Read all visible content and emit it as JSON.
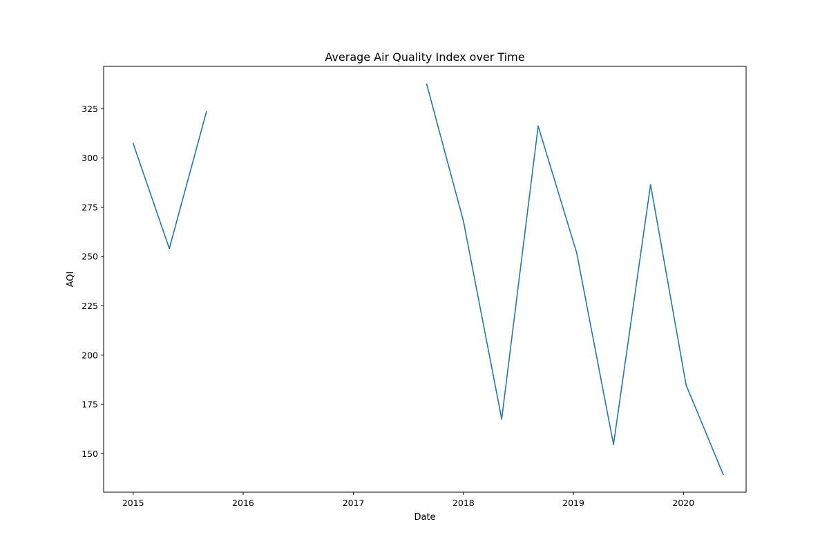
{
  "chart_data": {
    "type": "line",
    "title": "Average Air Quality Index over Time",
    "xlabel": "Date",
    "ylabel": "AQI",
    "x_ticks": [
      "2015",
      "2016",
      "2017",
      "2018",
      "2019",
      "2020"
    ],
    "y_ticks": [
      "150",
      "175",
      "200",
      "225",
      "250",
      "275",
      "300",
      "325"
    ],
    "xlim": [
      "2014-09-25",
      "2020-07-27"
    ],
    "ylim": [
      130.5,
      346.5
    ],
    "grid": false,
    "color": "#1f77b4",
    "series": [
      {
        "segments": [
          [
            {
              "x": "2015-01-01",
              "y": 307.4
            },
            {
              "x": "2015-05-01",
              "y": 254.1
            },
            {
              "x": "2015-09-01",
              "y": 323.4
            }
          ],
          [
            {
              "x": "2017-09-01",
              "y": 337.5
            },
            {
              "x": "2018-01-01",
              "y": 268.0
            },
            {
              "x": "2018-05-08",
              "y": 167.6
            },
            {
              "x": "2018-09-06",
              "y": 316.2
            },
            {
              "x": "2019-01-12",
              "y": 251.8
            },
            {
              "x": "2019-05-14",
              "y": 154.7
            },
            {
              "x": "2019-09-14",
              "y": 286.5
            },
            {
              "x": "2020-01-10",
              "y": 184.8
            },
            {
              "x": "2020-05-12",
              "y": 139.5
            }
          ]
        ]
      }
    ]
  }
}
